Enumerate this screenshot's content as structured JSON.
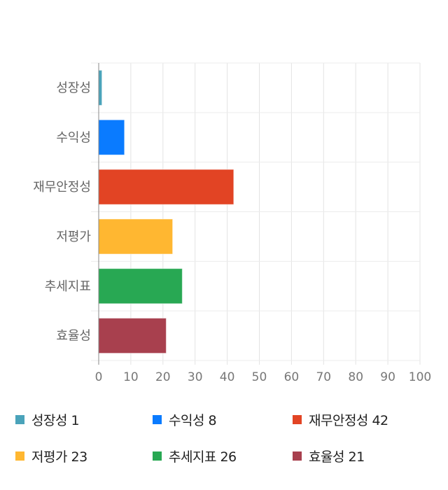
{
  "chart_data": {
    "type": "bar",
    "orientation": "horizontal",
    "categories": [
      "성장성",
      "수익성",
      "재무안정성",
      "저평가",
      "추세지표",
      "효율성"
    ],
    "values": [
      1,
      8,
      42,
      23,
      26,
      21
    ],
    "colors": [
      "#4aa3ba",
      "#0a7bff",
      "#e24424",
      "#ffb731",
      "#28a853",
      "#a8404e"
    ],
    "xlim": [
      0,
      100
    ],
    "xticks": [
      "0",
      "10",
      "20",
      "30",
      "40",
      "50",
      "60",
      "70",
      "80",
      "90",
      "100"
    ],
    "grid": true,
    "legend_position": "bottom",
    "legend": [
      "성장성 1",
      "수익성 8",
      "재무안정성 42",
      "저평가 23",
      "추세지표 26",
      "효율성 21"
    ]
  }
}
